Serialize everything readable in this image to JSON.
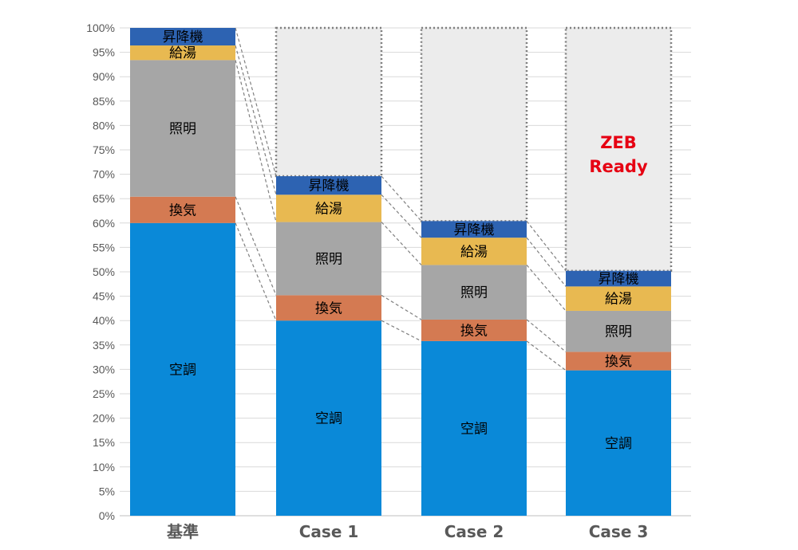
{
  "chart_data": {
    "type": "bar",
    "stacked": true,
    "categories": [
      "基準",
      "Case 1",
      "Case 2",
      "Case 3"
    ],
    "ylim": [
      0,
      100
    ],
    "ytick_step": 5,
    "ytick_suffix": "%",
    "grid": true,
    "series": [
      {
        "name": "空調",
        "color": "#0a89d8",
        "values": [
          60.0,
          40.0,
          35.8,
          29.8
        ]
      },
      {
        "name": "換気",
        "color": "#d47a52",
        "values": [
          5.4,
          5.2,
          4.4,
          3.8
        ]
      },
      {
        "name": "照明",
        "color": "#a6a6a6",
        "values": [
          28.0,
          15.0,
          11.2,
          8.4
        ]
      },
      {
        "name": "給湯",
        "color": "#e8b951",
        "values": [
          3.0,
          5.6,
          5.6,
          5.0
        ]
      },
      {
        "name": "昇降機",
        "color": "#2d63b2",
        "values": [
          3.6,
          3.8,
          3.4,
          3.2
        ]
      }
    ],
    "reduction_box": {
      "fill": "#ececec",
      "applies_to": [
        "Case 1",
        "Case 2",
        "Case 3"
      ]
    },
    "annotation": {
      "text": [
        "ZEB",
        "Ready"
      ],
      "category": "Case 3",
      "color": "#e60012"
    }
  }
}
